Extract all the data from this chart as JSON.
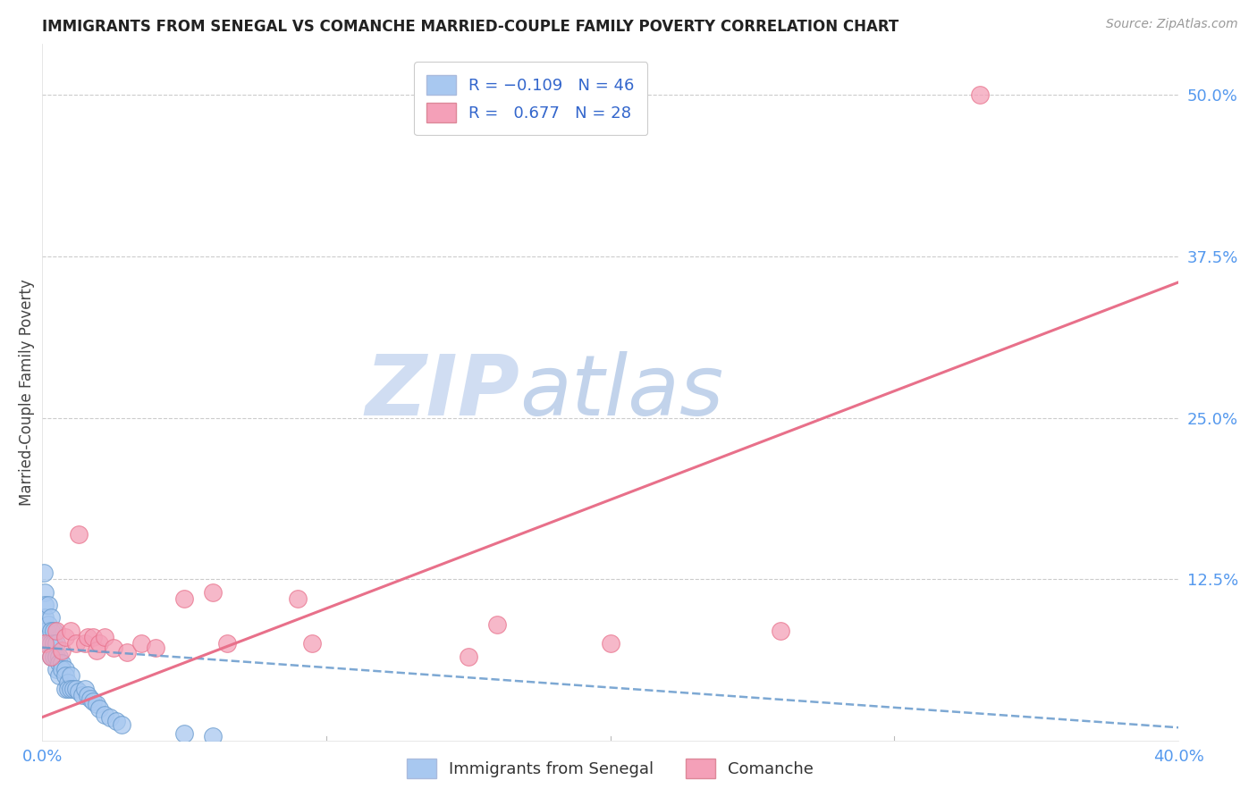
{
  "title": "IMMIGRANTS FROM SENEGAL VS COMANCHE MARRIED-COUPLE FAMILY POVERTY CORRELATION CHART",
  "source": "Source: ZipAtlas.com",
  "ylabel": "Married-Couple Family Poverty",
  "xlim": [
    0.0,
    0.4
  ],
  "ylim": [
    0.0,
    0.54
  ],
  "ytick_labels_right": [
    "50.0%",
    "37.5%",
    "25.0%",
    "12.5%"
  ],
  "ytick_values_right": [
    0.5,
    0.375,
    0.25,
    0.125
  ],
  "color_blue": "#a8c8f0",
  "color_pink": "#f4a0b8",
  "color_blue_line": "#6699cc",
  "color_pink_line": "#e8708a",
  "watermark_zip": "ZIP",
  "watermark_atlas": "atlas",
  "watermark_color_zip": "#d8e8f8",
  "watermark_color_atlas": "#c8d8e8",
  "blue_dots_x": [
    0.0005,
    0.001,
    0.001,
    0.001,
    0.0015,
    0.002,
    0.002,
    0.002,
    0.003,
    0.003,
    0.003,
    0.003,
    0.004,
    0.004,
    0.004,
    0.005,
    0.005,
    0.005,
    0.006,
    0.006,
    0.006,
    0.007,
    0.007,
    0.008,
    0.008,
    0.008,
    0.009,
    0.009,
    0.01,
    0.01,
    0.011,
    0.012,
    0.013,
    0.014,
    0.015,
    0.016,
    0.017,
    0.018,
    0.019,
    0.02,
    0.022,
    0.024,
    0.026,
    0.028,
    0.05,
    0.06
  ],
  "blue_dots_y": [
    0.13,
    0.115,
    0.105,
    0.095,
    0.085,
    0.105,
    0.09,
    0.075,
    0.095,
    0.085,
    0.075,
    0.065,
    0.085,
    0.075,
    0.065,
    0.075,
    0.065,
    0.055,
    0.065,
    0.06,
    0.05,
    0.06,
    0.055,
    0.055,
    0.05,
    0.04,
    0.045,
    0.04,
    0.05,
    0.04,
    0.04,
    0.04,
    0.038,
    0.035,
    0.04,
    0.035,
    0.032,
    0.03,
    0.028,
    0.025,
    0.02,
    0.018,
    0.015,
    0.012,
    0.005,
    0.003
  ],
  "pink_dots_x": [
    0.001,
    0.003,
    0.005,
    0.007,
    0.008,
    0.01,
    0.012,
    0.013,
    0.015,
    0.016,
    0.018,
    0.019,
    0.02,
    0.022,
    0.025,
    0.03,
    0.035,
    0.04,
    0.05,
    0.06,
    0.065,
    0.09,
    0.095,
    0.15,
    0.16,
    0.2,
    0.26,
    0.33
  ],
  "pink_dots_y": [
    0.075,
    0.065,
    0.085,
    0.07,
    0.08,
    0.085,
    0.075,
    0.16,
    0.075,
    0.08,
    0.08,
    0.07,
    0.075,
    0.08,
    0.072,
    0.068,
    0.075,
    0.072,
    0.11,
    0.115,
    0.075,
    0.11,
    0.075,
    0.065,
    0.09,
    0.075,
    0.085,
    0.5
  ],
  "blue_line_x": [
    0.0,
    0.4
  ],
  "blue_line_y": [
    0.072,
    0.01
  ],
  "pink_line_x": [
    0.0,
    0.4
  ],
  "pink_line_y": [
    0.018,
    0.355
  ]
}
